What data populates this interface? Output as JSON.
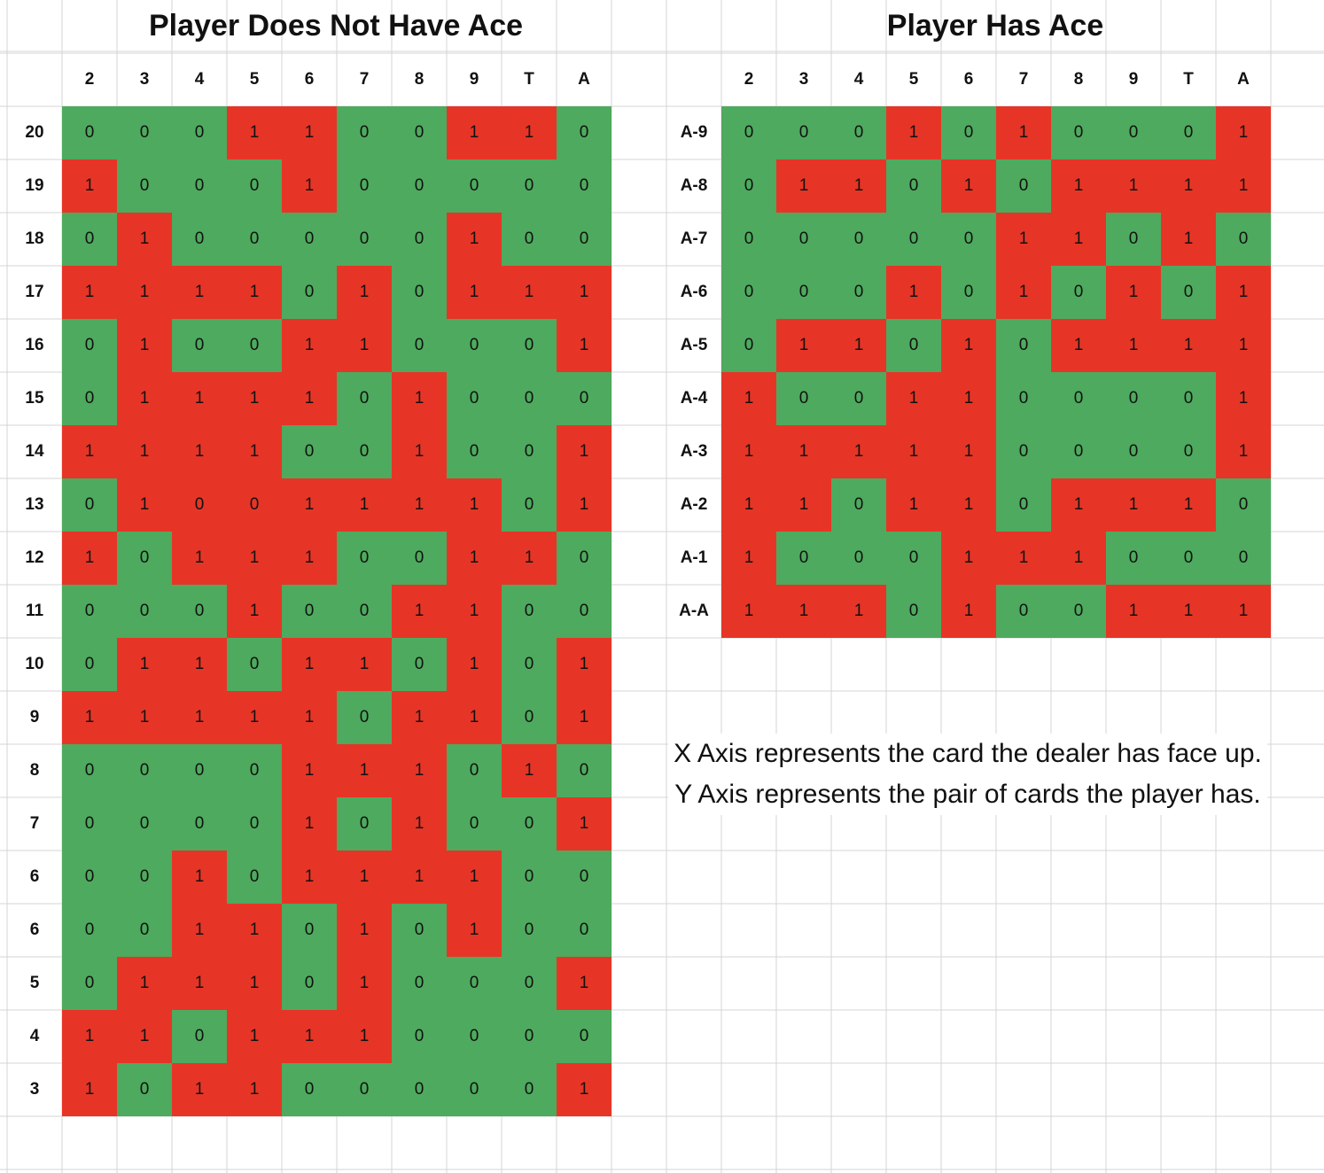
{
  "left_table": {
    "title": "Player Does Not Have Ace",
    "columns": [
      "2",
      "3",
      "4",
      "5",
      "6",
      "7",
      "8",
      "9",
      "T",
      "A"
    ],
    "rows": [
      "20",
      "19",
      "18",
      "17",
      "16",
      "15",
      "14",
      "13",
      "12",
      "11",
      "10",
      "9",
      "8",
      "7",
      "6",
      "6",
      "5",
      "4",
      "3"
    ],
    "values": [
      [
        0,
        0,
        0,
        1,
        1,
        0,
        0,
        1,
        1,
        0
      ],
      [
        1,
        0,
        0,
        0,
        1,
        0,
        0,
        0,
        0,
        0
      ],
      [
        0,
        1,
        0,
        0,
        0,
        0,
        0,
        1,
        0,
        0
      ],
      [
        1,
        1,
        1,
        1,
        0,
        1,
        0,
        1,
        1,
        1
      ],
      [
        0,
        1,
        0,
        0,
        1,
        1,
        0,
        0,
        0,
        1
      ],
      [
        0,
        1,
        1,
        1,
        1,
        0,
        1,
        0,
        0,
        0
      ],
      [
        1,
        1,
        1,
        1,
        0,
        0,
        1,
        0,
        0,
        1
      ],
      [
        0,
        1,
        0,
        0,
        1,
        1,
        1,
        1,
        0,
        1
      ],
      [
        1,
        0,
        1,
        1,
        1,
        0,
        0,
        1,
        1,
        0
      ],
      [
        0,
        0,
        0,
        1,
        0,
        0,
        1,
        1,
        0,
        0
      ],
      [
        0,
        1,
        1,
        0,
        1,
        1,
        0,
        1,
        0,
        1
      ],
      [
        1,
        1,
        1,
        1,
        1,
        0,
        1,
        1,
        0,
        1
      ],
      [
        0,
        0,
        0,
        0,
        1,
        1,
        1,
        0,
        1,
        0
      ],
      [
        0,
        0,
        0,
        0,
        1,
        0,
        1,
        0,
        0,
        1
      ],
      [
        0,
        0,
        1,
        0,
        1,
        1,
        1,
        1,
        0,
        0
      ],
      [
        0,
        0,
        1,
        1,
        0,
        1,
        0,
        1,
        0,
        0
      ],
      [
        0,
        1,
        1,
        1,
        0,
        1,
        0,
        0,
        0,
        1
      ],
      [
        1,
        1,
        0,
        1,
        1,
        1,
        0,
        0,
        0,
        0
      ],
      [
        1,
        0,
        1,
        1,
        0,
        0,
        0,
        0,
        0,
        1
      ]
    ],
    "colors": [
      "GGGRRGGRRG",
      "RGGGRGGGGG",
      "GRGGGGGRGG",
      "RRRRGRGRRR",
      "GRGGRRGGGR",
      "GRRRRGRGGG",
      "RRRRGGRGGR",
      "GRRRRRRRGR",
      "RGRRRGGRRG",
      "GGGRGGRRGG",
      "GRRGRRGRGR",
      "RRRRRGRRGR",
      "GGGGRRRGRG",
      "GGGGRGRGGR",
      "GGRGRRRRGG",
      "GGRRGRGRGG",
      "GRRRGRGGGR",
      "RRGRRRGGGG",
      "RGRRGGGGGR"
    ]
  },
  "right_table": {
    "title": "Player Has Ace",
    "columns": [
      "2",
      "3",
      "4",
      "5",
      "6",
      "7",
      "8",
      "9",
      "T",
      "A"
    ],
    "rows": [
      "A-9",
      "A-8",
      "A-7",
      "A-6",
      "A-5",
      "A-4",
      "A-3",
      "A-2",
      "A-1",
      "A-A"
    ],
    "values": [
      [
        0,
        0,
        0,
        1,
        0,
        1,
        0,
        0,
        0,
        1
      ],
      [
        0,
        1,
        1,
        0,
        1,
        0,
        1,
        1,
        1,
        1
      ],
      [
        0,
        0,
        0,
        0,
        0,
        1,
        1,
        0,
        1,
        0
      ],
      [
        0,
        0,
        0,
        1,
        0,
        1,
        0,
        1,
        0,
        1
      ],
      [
        0,
        1,
        1,
        0,
        1,
        0,
        1,
        1,
        1,
        1
      ],
      [
        1,
        0,
        0,
        1,
        1,
        0,
        0,
        0,
        0,
        1
      ],
      [
        1,
        1,
        1,
        1,
        1,
        0,
        0,
        0,
        0,
        1
      ],
      [
        1,
        1,
        0,
        1,
        1,
        0,
        1,
        1,
        1,
        0
      ],
      [
        1,
        0,
        0,
        0,
        1,
        1,
        1,
        0,
        0,
        0
      ],
      [
        1,
        1,
        1,
        0,
        1,
        0,
        0,
        1,
        1,
        1
      ]
    ],
    "colors": [
      "GGGRGRGGGR",
      "GRRGRGRRRR",
      "GGGGGRRGRG",
      "GGGRGRGRGR",
      "GRRGRGRRRR",
      "RGGRRGGGGR",
      "RRRRRGGGGR",
      "RRGRRGRRRG",
      "RGGGRRRGGG",
      "RRRGRGGRRR"
    ]
  },
  "note": "X Axis represents the card the dealer has face up. Y Axis represents the pair of cards the player has.",
  "palette": {
    "green": "#4eaa5e",
    "red": "#e63526",
    "gridline": "#d4d4d4"
  }
}
